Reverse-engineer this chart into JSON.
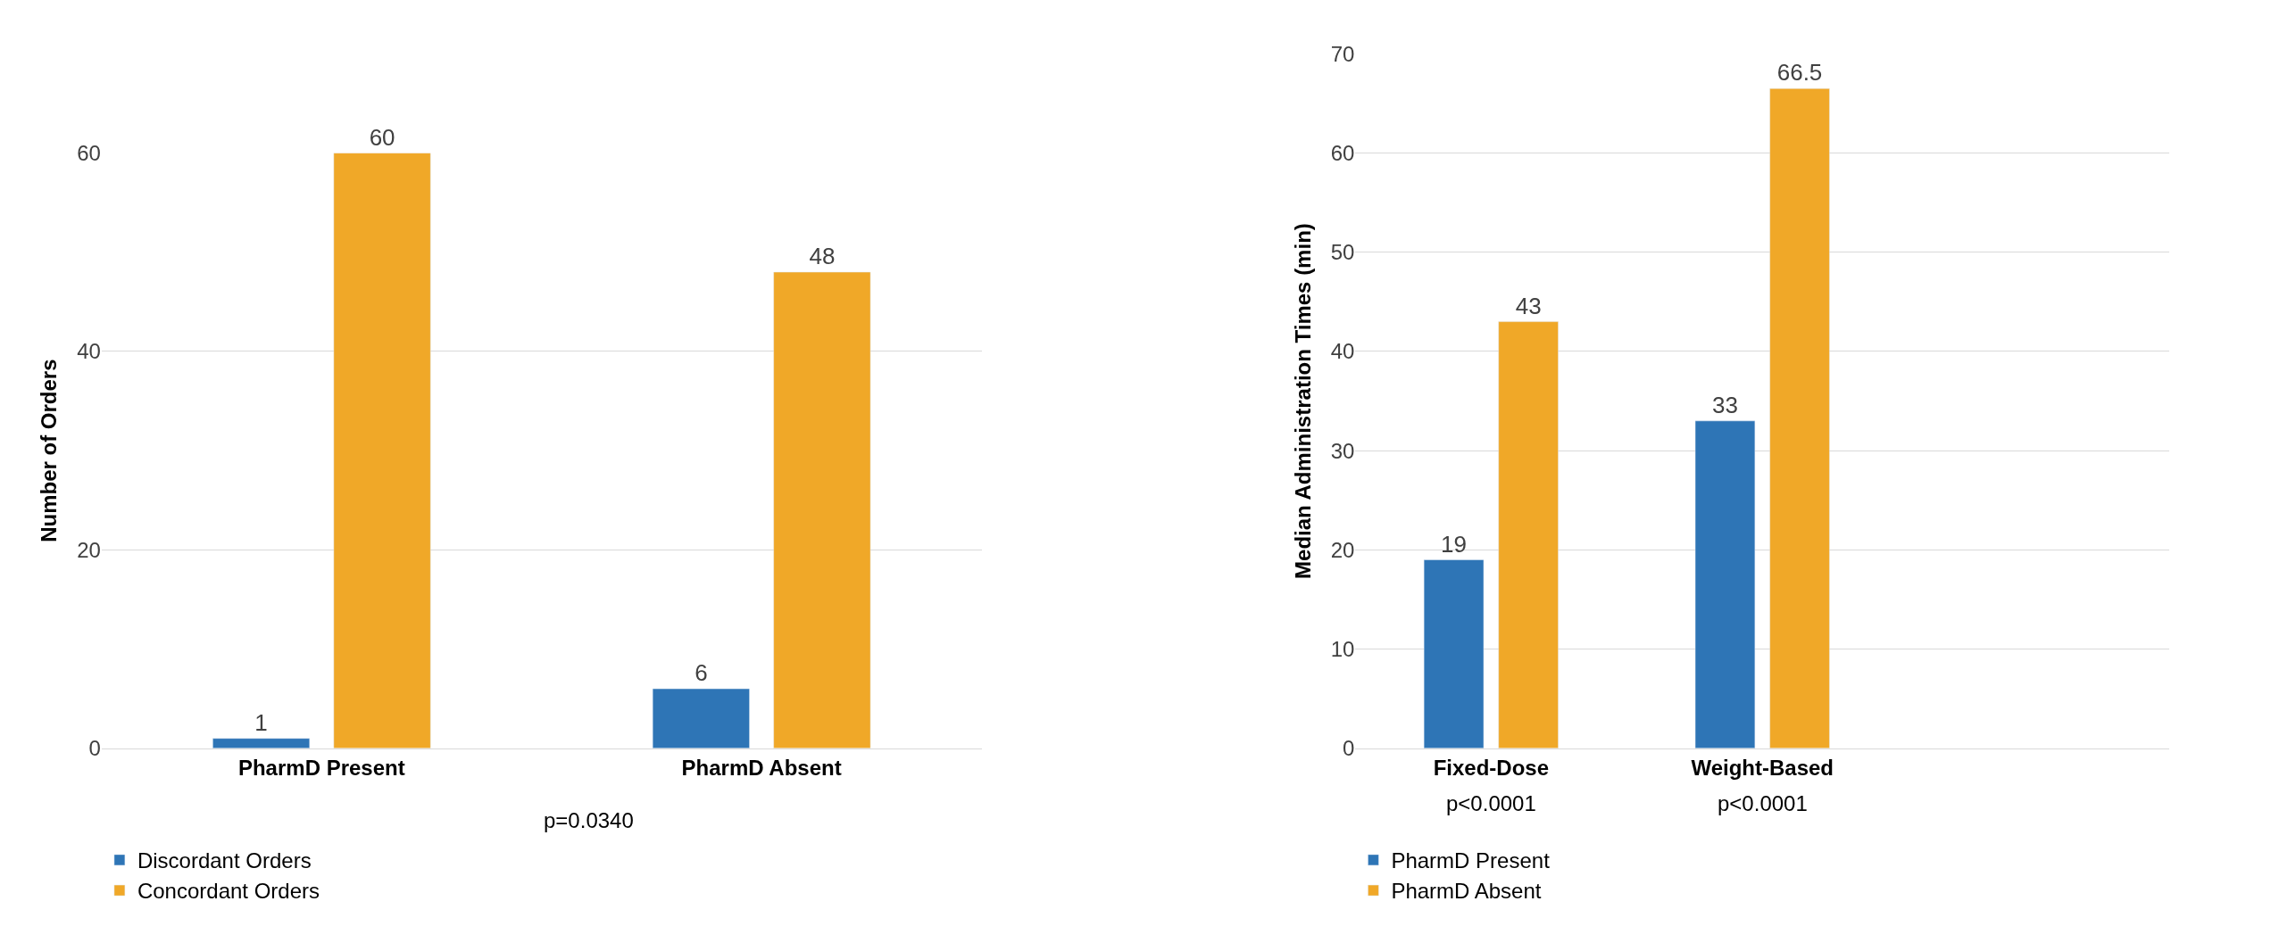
{
  "chart_data": [
    {
      "type": "bar",
      "ylabel": "Number of Orders",
      "categories": [
        "PharmD Present",
        "PharmD Absent"
      ],
      "series": [
        {
          "name": "Discordant Orders",
          "color": "#2e75b6",
          "values": [
            1,
            6
          ]
        },
        {
          "name": "Concordant Orders",
          "color": "#f0a828",
          "values": [
            60,
            48
          ]
        }
      ],
      "ylim": [
        0,
        60
      ],
      "yticks": [
        0,
        20,
        40,
        60
      ],
      "grid": "y",
      "legend": "bottom",
      "data_labels": true,
      "annotations": [
        "p=0.0340"
      ]
    },
    {
      "type": "bar",
      "ylabel": "Median Administration Times (min)",
      "categories": [
        "Fixed-Dose",
        "Weight-Based"
      ],
      "series": [
        {
          "name": "PharmD Present",
          "color": "#2e75b6",
          "values": [
            19,
            33
          ]
        },
        {
          "name": "PharmD Absent",
          "color": "#f0a828",
          "values": [
            43,
            66.5
          ]
        }
      ],
      "ylim": [
        0,
        70
      ],
      "yticks": [
        0,
        10,
        20,
        30,
        40,
        50,
        60,
        70
      ],
      "grid": "y",
      "legend": "bottom",
      "data_labels": true,
      "annotations": [
        "p<0.0001",
        "p<0.0001"
      ]
    }
  ]
}
